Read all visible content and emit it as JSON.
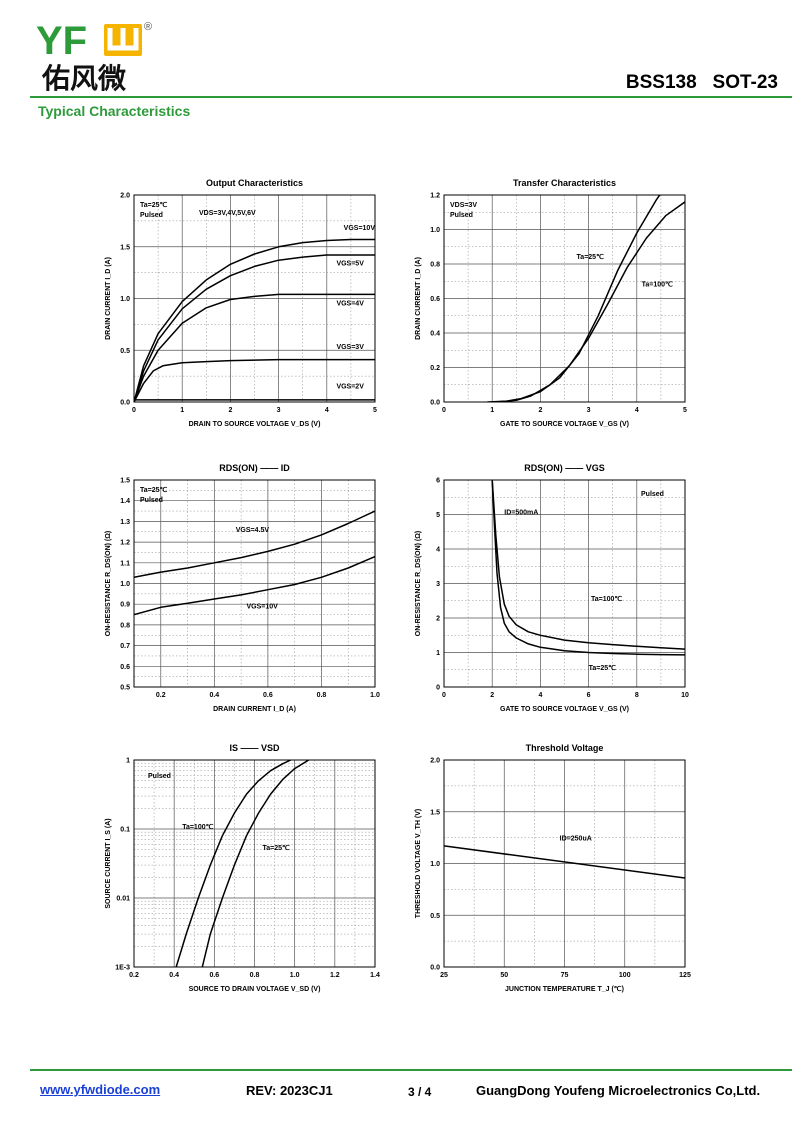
{
  "header": {
    "logo_latin": "YFW",
    "logo_registered": "®",
    "logo_cn": "佑风微",
    "part_number": "BSS138",
    "package": "SOT-23",
    "section_title": "Typical Characteristics"
  },
  "footer": {
    "website": "www.yfwdiode.com",
    "revision": "REV: 2023CJ1",
    "page": "3 / 4",
    "company": "GuangDong Youfeng Microelectronics Co,Ltd."
  },
  "colors": {
    "brand_green": "#2e9b3a",
    "logo_yellow": "#f4b400",
    "link_blue": "#1a3fd6"
  },
  "chart_data": [
    {
      "id": "output",
      "type": "line",
      "title": "Output Characteristics",
      "xlabel": "DRAIN TO SOURCE VOLTAGE V_DS (V)",
      "ylabel": "DRAIN CURRENT I_D (A)",
      "xlim": [
        0,
        5
      ],
      "ylim": [
        0,
        2.0
      ],
      "xticks": [
        0,
        1,
        2,
        3,
        4,
        5
      ],
      "xtick_labels": [
        "0",
        "1",
        "2",
        "3",
        "4",
        "5"
      ],
      "yticks": [
        0,
        0.5,
        1.0,
        1.5,
        2.0
      ],
      "ytick_labels": [
        "0.0",
        "0.5",
        "1.0",
        "1.5",
        "2.0"
      ],
      "notes": [
        "Ta=25℃",
        "Pulsed",
        "VDS=3V,4V,5V,6V"
      ],
      "series": [
        {
          "name": "VGS=10V",
          "x": [
            0,
            0.2,
            0.5,
            1,
            1.5,
            2,
            2.5,
            3,
            3.5,
            4,
            4.5,
            5
          ],
          "y": [
            0,
            0.35,
            0.66,
            0.97,
            1.18,
            1.33,
            1.43,
            1.5,
            1.54,
            1.56,
            1.57,
            1.57
          ]
        },
        {
          "name": "VGS=5V",
          "x": [
            0,
            0.2,
            0.5,
            1,
            1.5,
            2,
            2.5,
            3,
            3.5,
            4,
            4.5,
            5
          ],
          "y": [
            0,
            0.3,
            0.6,
            0.9,
            1.09,
            1.22,
            1.31,
            1.37,
            1.4,
            1.42,
            1.42,
            1.42
          ]
        },
        {
          "name": "VGS=4V",
          "x": [
            0,
            0.2,
            0.5,
            1,
            1.5,
            2,
            2.5,
            3,
            3.5,
            4,
            4.5,
            5
          ],
          "y": [
            0,
            0.25,
            0.5,
            0.76,
            0.91,
            0.99,
            1.02,
            1.04,
            1.04,
            1.04,
            1.04,
            1.04
          ]
        },
        {
          "name": "VGS=3V",
          "x": [
            0,
            0.2,
            0.4,
            0.6,
            1,
            1.5,
            2,
            3,
            4,
            5
          ],
          "y": [
            0,
            0.18,
            0.3,
            0.35,
            0.38,
            0.39,
            0.4,
            0.41,
            0.41,
            0.41
          ]
        },
        {
          "name": "VGS=2V",
          "x": [
            0,
            5
          ],
          "y": [
            0.02,
            0.02
          ]
        }
      ],
      "curve_labels": [
        {
          "text": "VGS=10V",
          "x": 4.35,
          "y": 1.66
        },
        {
          "text": "VGS=5V",
          "x": 4.2,
          "y": 1.32
        },
        {
          "text": "VGS=4V",
          "x": 4.2,
          "y": 0.93
        },
        {
          "text": "VGS=3V",
          "x": 4.2,
          "y": 0.51
        },
        {
          "text": "VGS=2V",
          "x": 4.2,
          "y": 0.13
        }
      ]
    },
    {
      "id": "transfer",
      "type": "line",
      "title": "Transfer Characteristics",
      "xlabel": "GATE TO SOURCE VOLTAGE V_GS (V)",
      "ylabel": "DRAIN CURRENT I_D (A)",
      "xlim": [
        0,
        5
      ],
      "ylim": [
        0,
        1.2
      ],
      "xticks": [
        0,
        1,
        2,
        3,
        4,
        5
      ],
      "xtick_labels": [
        "0",
        "1",
        "2",
        "3",
        "4",
        "5"
      ],
      "yticks": [
        0,
        0.2,
        0.4,
        0.6,
        0.8,
        1.0,
        1.2
      ],
      "ytick_labels": [
        "0.0",
        "0.2",
        "0.4",
        "0.6",
        "0.8",
        "1.0",
        "1.2"
      ],
      "notes": [
        "VDS=3V",
        "Pulsed"
      ],
      "series": [
        {
          "name": "Ta=25℃",
          "x": [
            0.9,
            1.3,
            1.6,
            2.0,
            2.4,
            2.8,
            3.2,
            3.6,
            4.0,
            4.4,
            4.5
          ],
          "y": [
            0,
            0.005,
            0.02,
            0.06,
            0.14,
            0.28,
            0.5,
            0.76,
            0.98,
            1.17,
            1.21
          ]
        },
        {
          "name": "Ta=100℃",
          "x": [
            1.1,
            1.5,
            1.8,
            2.2,
            2.6,
            3.0,
            3.4,
            3.8,
            4.2,
            4.6,
            5.0
          ],
          "y": [
            0,
            0.01,
            0.035,
            0.1,
            0.21,
            0.37,
            0.57,
            0.78,
            0.95,
            1.08,
            1.16
          ]
        }
      ],
      "curve_labels": [
        {
          "text": "Ta=25℃",
          "x": 2.75,
          "y": 0.83
        },
        {
          "text": "Ta=100℃",
          "x": 4.1,
          "y": 0.67
        }
      ]
    },
    {
      "id": "rdson_id",
      "type": "line",
      "title": "RDS(ON) —— ID",
      "xlabel": "DRAIN CURRENT I_D (A)",
      "ylabel": "ON-RESISTANCE R_DS(ON) (Ω)",
      "xlim": [
        0.1,
        1.0
      ],
      "ylim": [
        0.5,
        1.5
      ],
      "xticks": [
        0.2,
        0.4,
        0.6,
        0.8,
        1.0
      ],
      "xtick_labels": [
        "0.2",
        "0.4",
        "0.6",
        "0.8",
        "1.0"
      ],
      "yticks": [
        0.5,
        0.6,
        0.7,
        0.8,
        0.9,
        1.0,
        1.1,
        1.2,
        1.3,
        1.4,
        1.5
      ],
      "ytick_labels": [
        "0.5",
        "0.6",
        "0.7",
        "0.8",
        "0.9",
        "1.0",
        "1.1",
        "1.2",
        "1.3",
        "1.4",
        "1.5"
      ],
      "notes": [
        "Ta=25℃",
        "Pulsed"
      ],
      "series": [
        {
          "name": "VGS=4.5V",
          "x": [
            0.1,
            0.2,
            0.3,
            0.4,
            0.5,
            0.6,
            0.7,
            0.8,
            0.9,
            1.0
          ],
          "y": [
            1.03,
            1.055,
            1.075,
            1.1,
            1.125,
            1.155,
            1.19,
            1.235,
            1.29,
            1.35
          ]
        },
        {
          "name": "VGS=10V",
          "x": [
            0.1,
            0.2,
            0.3,
            0.4,
            0.5,
            0.6,
            0.7,
            0.8,
            0.9,
            1.0
          ],
          "y": [
            0.85,
            0.885,
            0.905,
            0.925,
            0.945,
            0.97,
            0.995,
            1.03,
            1.075,
            1.13
          ]
        }
      ],
      "curve_labels": [
        {
          "text": "VGS=4.5V",
          "x": 0.48,
          "y": 1.25
        },
        {
          "text": "VGS=10V",
          "x": 0.52,
          "y": 0.88
        }
      ]
    },
    {
      "id": "rdson_vgs",
      "type": "line",
      "title": "RDS(ON) —— VGS",
      "xlabel": "GATE TO SOURCE VOLTAGE V_GS (V)",
      "ylabel": "ON-RESISTANCE R_DS(ON) (Ω)",
      "xlim": [
        0,
        10
      ],
      "ylim": [
        0,
        6
      ],
      "xticks": [
        0,
        2,
        4,
        6,
        8,
        10
      ],
      "xtick_labels": [
        "0",
        "2",
        "4",
        "6",
        "8",
        "10"
      ],
      "yticks": [
        0,
        1,
        2,
        3,
        4,
        5,
        6
      ],
      "ytick_labels": [
        "0",
        "1",
        "2",
        "3",
        "4",
        "5",
        "6"
      ],
      "notes": [
        "Pulsed",
        "ID=500mA"
      ],
      "series": [
        {
          "name": "Ta=100℃",
          "x": [
            2.0,
            2.15,
            2.3,
            2.5,
            2.7,
            3.0,
            3.5,
            4,
            5,
            6,
            7,
            8,
            9,
            10
          ],
          "y": [
            6.0,
            4.4,
            3.2,
            2.4,
            2.05,
            1.8,
            1.6,
            1.5,
            1.36,
            1.28,
            1.23,
            1.18,
            1.14,
            1.1
          ]
        },
        {
          "name": "Ta=25℃",
          "x": [
            2.0,
            2.1,
            2.2,
            2.35,
            2.5,
            2.7,
            3.0,
            3.5,
            4,
            5,
            6,
            7,
            8,
            9,
            10
          ],
          "y": [
            6.0,
            4.6,
            3.3,
            2.3,
            1.85,
            1.6,
            1.42,
            1.25,
            1.15,
            1.05,
            1.0,
            0.97,
            0.95,
            0.94,
            0.93
          ]
        }
      ],
      "curve_labels": [
        {
          "text": "Ta=100℃",
          "x": 6.1,
          "y": 2.5
        },
        {
          "text": "Ta=25℃",
          "x": 6.0,
          "y": 0.5
        }
      ]
    },
    {
      "id": "is_vsd",
      "type": "line",
      "title": "IS —— VSD",
      "xlabel": "SOURCE TO DRAIN VOLTAGE V_SD (V)",
      "ylabel": "SOURCE CURRENT I_S (A)",
      "xlim": [
        0.2,
        1.4
      ],
      "ylim": [
        0.001,
        1
      ],
      "yscale": "log",
      "xticks": [
        0.2,
        0.4,
        0.6,
        0.8,
        1.0,
        1.2,
        1.4
      ],
      "xtick_labels": [
        "0.2",
        "0.4",
        "0.6",
        "0.8",
        "1.0",
        "1.2",
        "1.4"
      ],
      "yticks": [
        0.001,
        0.01,
        0.1,
        1
      ],
      "ytick_labels": [
        "1E-3",
        "0.01",
        "0.1",
        "1"
      ],
      "notes": [
        "Pulsed"
      ],
      "series": [
        {
          "name": "Ta=100℃",
          "x": [
            0.41,
            0.46,
            0.52,
            0.58,
            0.64,
            0.7,
            0.76,
            0.82,
            0.88,
            0.94,
            0.98
          ],
          "y": [
            0.001,
            0.003,
            0.01,
            0.03,
            0.08,
            0.17,
            0.32,
            0.5,
            0.7,
            0.88,
            1.0
          ]
        },
        {
          "name": "Ta=25℃",
          "x": [
            0.54,
            0.58,
            0.64,
            0.7,
            0.76,
            0.82,
            0.88,
            0.94,
            1.0,
            1.07
          ],
          "y": [
            0.001,
            0.003,
            0.01,
            0.03,
            0.08,
            0.17,
            0.32,
            0.52,
            0.75,
            1.0
          ]
        }
      ],
      "curve_labels": [
        {
          "text": "Ta=100℃",
          "x": 0.44,
          "y": 0.1
        },
        {
          "text": "Ta=25℃",
          "x": 0.84,
          "y": 0.05
        }
      ]
    },
    {
      "id": "threshold",
      "type": "line",
      "title": "Threshold Voltage",
      "xlabel": "JUNCTION TEMPERATURE T_J (℃)",
      "ylabel": "THRESHOLD VOLTAGE V_TH (V)",
      "xlim": [
        25,
        125
      ],
      "ylim": [
        0,
        2.0
      ],
      "xticks": [
        25,
        50,
        75,
        100,
        125
      ],
      "xtick_labels": [
        "25",
        "50",
        "75",
        "100",
        "125"
      ],
      "yticks": [
        0,
        0.5,
        1.0,
        1.5,
        2.0
      ],
      "ytick_labels": [
        "0.0",
        "0.5",
        "1.0",
        "1.5",
        "2.0"
      ],
      "notes": [
        "ID=250uA"
      ],
      "series": [
        {
          "name": "VTH",
          "x": [
            25,
            125
          ],
          "y": [
            1.17,
            0.86
          ]
        }
      ],
      "curve_labels": []
    }
  ]
}
